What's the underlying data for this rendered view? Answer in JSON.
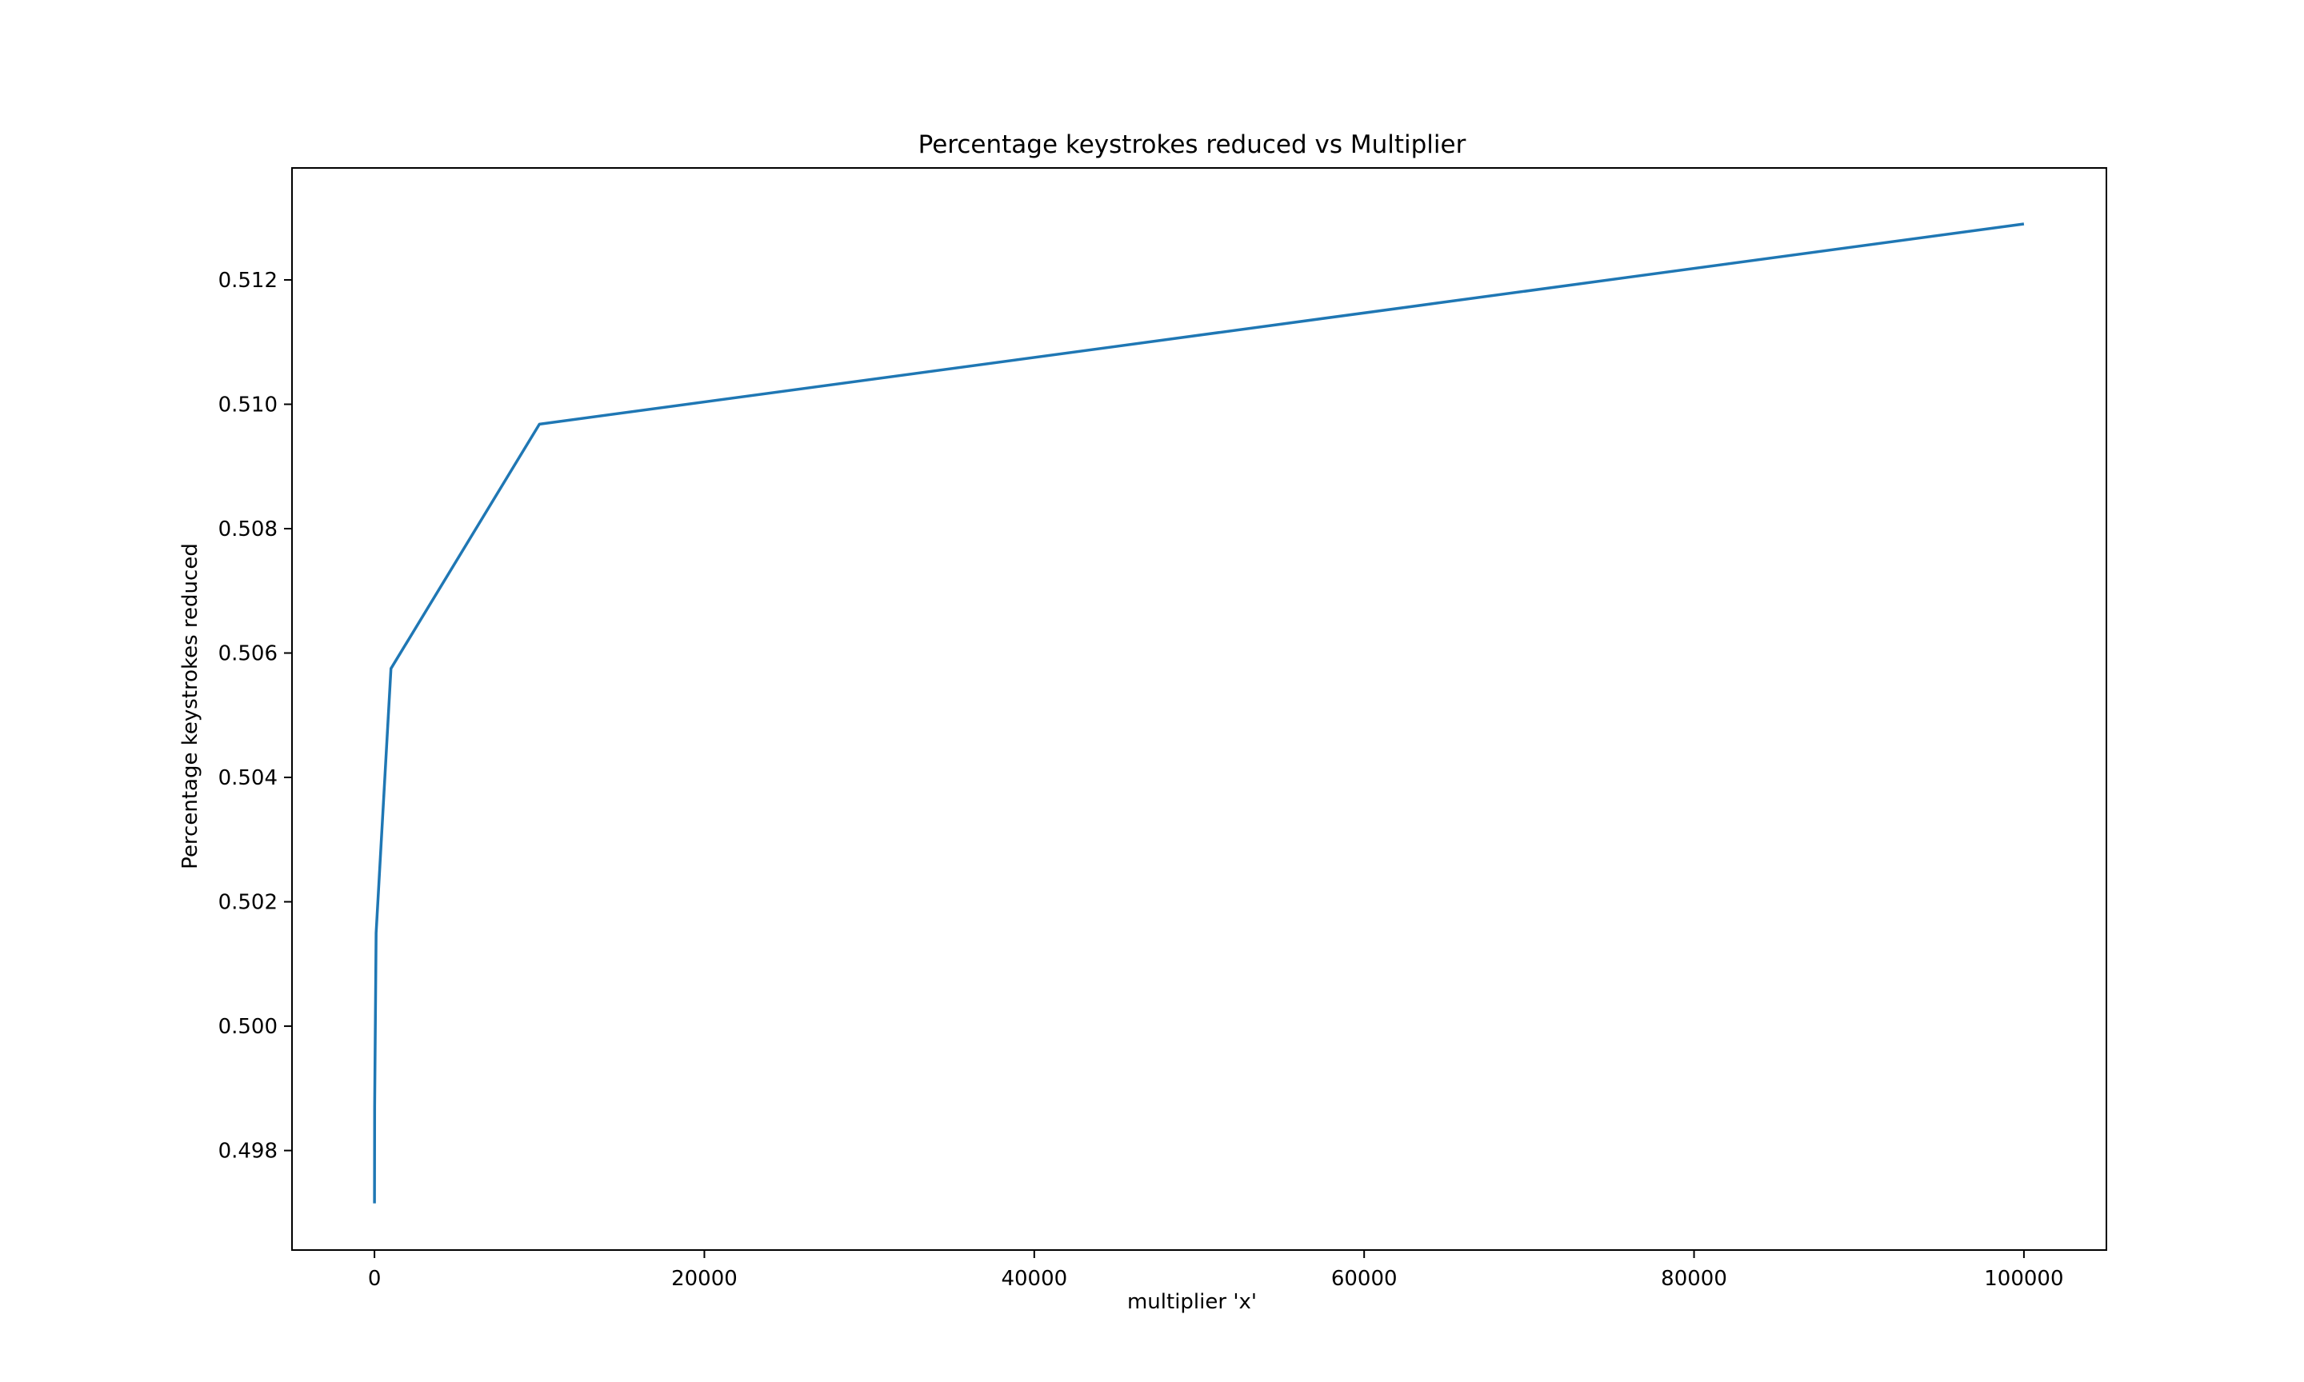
{
  "chart_data": {
    "type": "line",
    "title": "Percentage keystrokes reduced vs Multiplier",
    "xlabel": "multiplier 'x'",
    "ylabel": "Percentage keystrokes reduced",
    "xlim": [
      -5000,
      105000
    ],
    "ylim": [
      0.4964,
      0.5138
    ],
    "x_ticks": [
      0,
      20000,
      40000,
      60000,
      80000,
      100000
    ],
    "x_tick_labels": [
      "0",
      "20000",
      "40000",
      "60000",
      "80000",
      "100000"
    ],
    "y_ticks": [
      0.498,
      0.5,
      0.502,
      0.504,
      0.506,
      0.508,
      0.51,
      0.512
    ],
    "y_tick_labels": [
      "0.498",
      "0.500",
      "0.502",
      "0.504",
      "0.506",
      "0.508",
      "0.510",
      "0.512"
    ],
    "grid": false,
    "legend": "none",
    "series": [
      {
        "color": "#1f77b4",
        "x": [
          1,
          10,
          100,
          1000,
          10000,
          100000
        ],
        "y": [
          0.49715,
          0.4987,
          0.5015,
          0.50575,
          0.50968,
          0.5129
        ]
      }
    ]
  }
}
